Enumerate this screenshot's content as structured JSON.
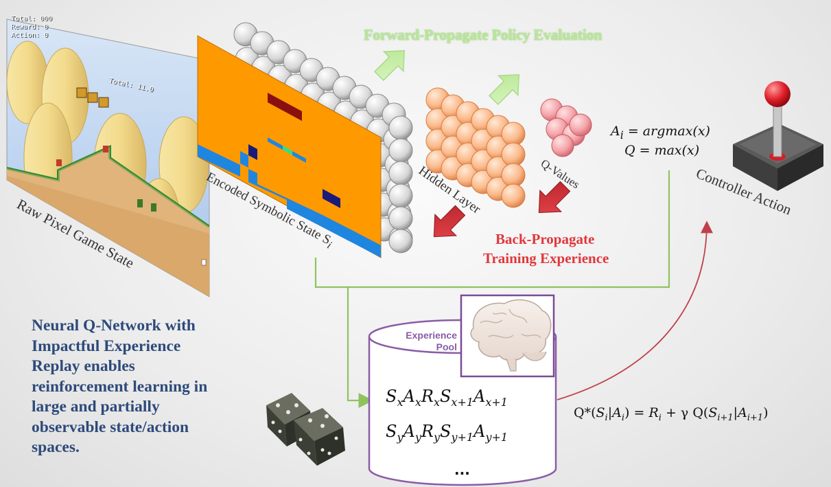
{
  "forward_label": "Forward-Propagate Policy Evaluation",
  "backward_label_line1": "Back-Propagate",
  "backward_label_line2": "Training Experience",
  "raw_state_label": "Raw Pixel Game State",
  "encoded_state_label": "Encoded Symbolic State S",
  "encoded_state_subscript": "i",
  "hidden_layer_label": "Hidden Layer",
  "q_values_label": "Q-Values",
  "controller_label": "Controller Action",
  "action_eq_line1": "A",
  "action_eq_line1_sub": "i",
  "action_eq_line1_rhs": " = argmax(x)",
  "action_eq_line2": "Q = max(x)",
  "caption_lines": [
    "Neural Q-Network with",
    "Impactful Experience",
    "Replay enables",
    "reinforcement learning in",
    "large and partially",
    "observable state/action",
    "spaces."
  ],
  "experience_pool_line1": "Experience",
  "experience_pool_line2": "Pool",
  "pool_row1": "SxAxRxSx+1Ax+1",
  "pool_row2": "SyAyRySy+1Ay+1",
  "pool_ellipsis": "...",
  "bellman_equation": "Q*(Si|Ai) = Ri + γ Q(Si+1|Ai+1)",
  "game_hud": {
    "line1": "Total: 000",
    "line2": "Reward: 0",
    "line3": "Action: 0",
    "timer": "Total: 11.0"
  },
  "colors": {
    "forward": "#b9e59a",
    "backward": "#e0373b",
    "caption": "#2d4a7a",
    "pool_outline": "#8a5ca6",
    "hidden_nodes": "#f9b98a",
    "q_nodes": "#f4a3a8",
    "input_nodes": "#d8d8d8",
    "grid_orange": "#ff9900",
    "grid_blue": "#1f86e0",
    "link_green": "#8fc25f",
    "link_red": "#c0404a"
  }
}
